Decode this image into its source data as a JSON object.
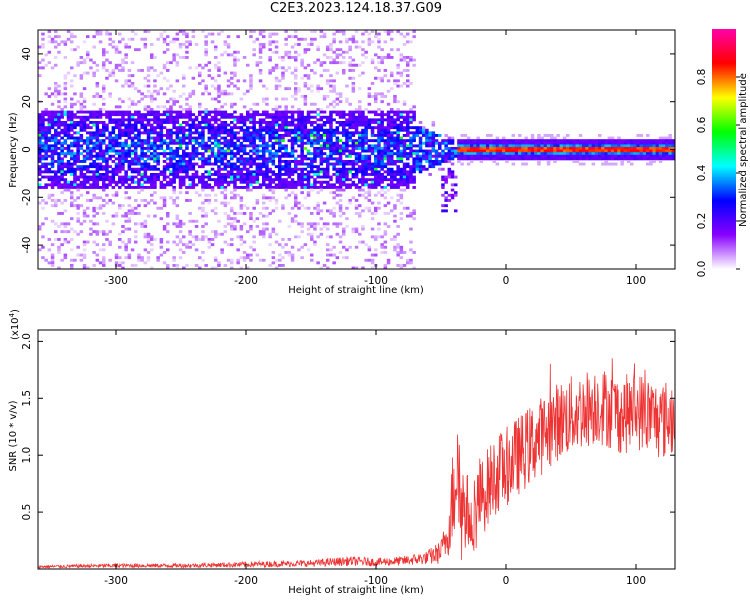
{
  "title": "C2E3.2023.124.18.37.G09",
  "chart_data": [
    {
      "type": "heatmap",
      "title": "C2E3.2023.124.18.37.G09",
      "xlabel": "Height of straight line (km)",
      "ylabel": "Frequency (Hz)",
      "xlim": [
        -360,
        130
      ],
      "ylim": [
        -50,
        50
      ],
      "x_ticks": [
        -300,
        -200,
        -100,
        0,
        100
      ],
      "x_tick_labels": [
        "-300",
        "-200",
        "-100",
        "0",
        "100"
      ],
      "y_ticks": [
        -40,
        -20,
        0,
        20,
        40
      ],
      "y_tick_labels": [
        "-40",
        "-20",
        "0",
        "20",
        "40"
      ],
      "colorbar": {
        "label": "Normalized spectral amplitude",
        "range": [
          0,
          1
        ],
        "ticks": [
          0.0,
          0.2,
          0.4,
          0.6,
          0.8
        ],
        "tick_labels": [
          "0.0",
          "0.2",
          "0.4",
          "0.6",
          "0.8"
        ],
        "colormap": [
          "#ffffff",
          "#8800ff",
          "#0000ff",
          "#00ffff",
          "#00ff00",
          "#ffff00",
          "#ff0000",
          "#ff00aa"
        ]
      },
      "signal_band": {
        "center_frequency_hz": 0,
        "noisy_region_km": [
          -360,
          -70
        ],
        "transition_region_km": [
          -70,
          -40
        ],
        "coherent_region_km": [
          -40,
          130
        ],
        "peak_normalized_amplitude": 0.9
      },
      "grid": false
    },
    {
      "type": "line",
      "xlabel": "Height of straight line (km)",
      "ylabel": "SNR (10 * v/v)",
      "y_scale_label": "(x10",
      "y_scale_exponent": "4",
      "y_scale_close": ")",
      "xlim": [
        -360,
        130
      ],
      "ylim": [
        0,
        2.1
      ],
      "x_ticks": [
        -300,
        -200,
        -100,
        0,
        100
      ],
      "x_tick_labels": [
        "-300",
        "-200",
        "-100",
        "0",
        "100"
      ],
      "y_ticks": [
        0.5,
        1.0,
        1.5,
        2.0
      ],
      "y_tick_labels": [
        "0.5",
        "1.0",
        "1.5",
        "2.0"
      ],
      "color": "#ee3333",
      "series": [
        {
          "x": [
            -360,
            -300,
            -250,
            -200,
            -150,
            -120,
            -100,
            -80,
            -60,
            -50,
            -45,
            -40,
            -37,
            -35,
            -30,
            -25,
            -20,
            -10,
            0,
            10,
            20,
            30,
            40,
            50,
            60,
            70,
            80,
            90,
            100,
            110,
            120,
            130
          ],
          "values": [
            0.02,
            0.03,
            0.03,
            0.04,
            0.05,
            0.07,
            0.06,
            0.07,
            0.1,
            0.15,
            0.3,
            0.7,
            1.2,
            0.6,
            0.5,
            0.5,
            0.6,
            0.8,
            0.9,
            1.0,
            1.1,
            1.2,
            1.3,
            1.35,
            1.4,
            1.45,
            1.4,
            1.35,
            1.4,
            1.35,
            1.3,
            1.35
          ]
        }
      ],
      "grid": false
    }
  ]
}
